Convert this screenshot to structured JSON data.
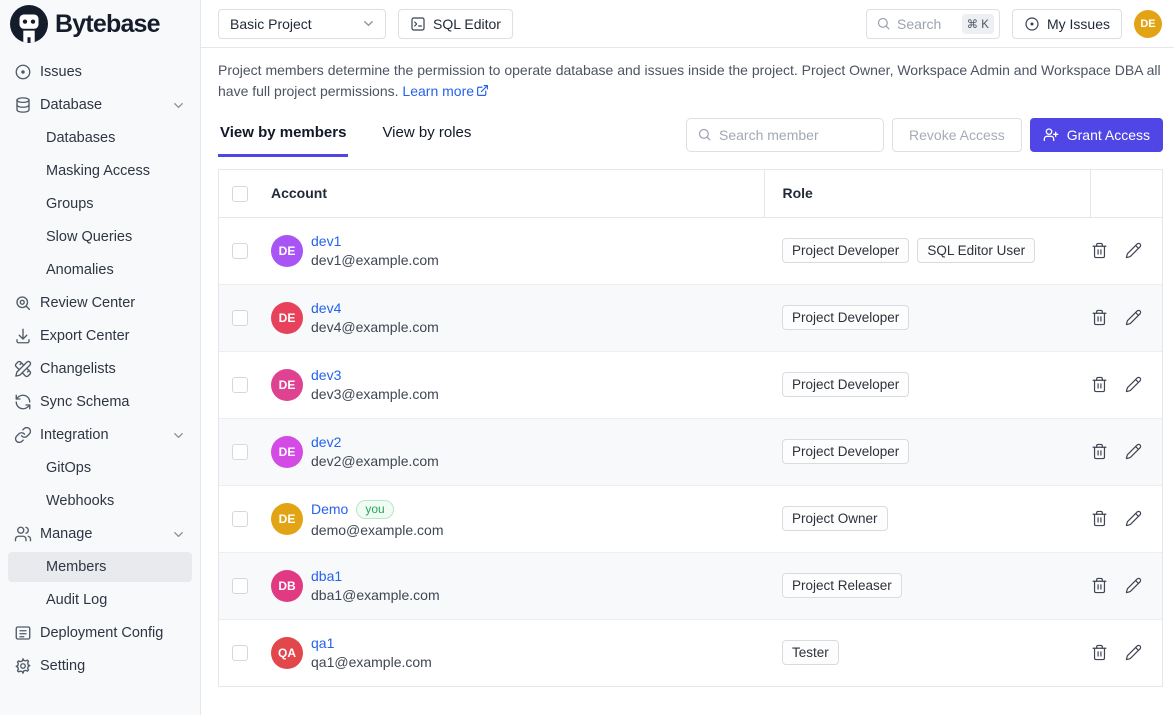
{
  "brand": {
    "name": "Bytebase"
  },
  "topbar": {
    "project_select_value": "Basic Project",
    "sql_editor_label": "SQL Editor",
    "search_placeholder": "Search",
    "search_shortcut": "⌘ K",
    "my_issues_label": "My Issues",
    "user_avatar_initials": "DE"
  },
  "sidebar": {
    "items": [
      {
        "label": "Issues",
        "icon": "issues"
      },
      {
        "label": "Database",
        "icon": "database",
        "expandable": true
      },
      {
        "label": "Databases",
        "sub": true
      },
      {
        "label": "Masking Access",
        "sub": true
      },
      {
        "label": "Groups",
        "sub": true
      },
      {
        "label": "Slow Queries",
        "sub": true
      },
      {
        "label": "Anomalies",
        "sub": true
      },
      {
        "label": "Review Center",
        "icon": "review-center"
      },
      {
        "label": "Export Center",
        "icon": "export-center"
      },
      {
        "label": "Changelists",
        "icon": "changelists"
      },
      {
        "label": "Sync Schema",
        "icon": "sync-schema"
      },
      {
        "label": "Integration",
        "icon": "integration",
        "expandable": true
      },
      {
        "label": "GitOps",
        "sub": true
      },
      {
        "label": "Webhooks",
        "sub": true
      },
      {
        "label": "Manage",
        "icon": "manage",
        "expandable": true
      },
      {
        "label": "Members",
        "sub": true,
        "active": true
      },
      {
        "label": "Audit Log",
        "sub": true
      },
      {
        "label": "Deployment Config",
        "icon": "deployment-config"
      },
      {
        "label": "Setting",
        "icon": "setting"
      }
    ]
  },
  "main": {
    "description": "Project members determine the permission to operate database and issues inside the project. Project Owner, Workspace Admin and Workspace DBA all have full project permissions.",
    "learn_more_label": "Learn more",
    "tabs": [
      {
        "label": "View by members",
        "active": true
      },
      {
        "label": "View by roles",
        "active": false
      }
    ],
    "member_search_placeholder": "Search member",
    "revoke_access_label": "Revoke Access",
    "grant_access_label": "Grant Access",
    "table": {
      "columns": [
        "Account",
        "Role"
      ],
      "rows": [
        {
          "name": "dev1",
          "email": "dev1@example.com",
          "initials": "DE",
          "avatar_color": "#a955f6",
          "roles": [
            "Project Developer",
            "SQL Editor User"
          ]
        },
        {
          "name": "dev4",
          "email": "dev4@example.com",
          "initials": "DE",
          "avatar_color": "#e8415c",
          "roles": [
            "Project Developer"
          ]
        },
        {
          "name": "dev3",
          "email": "dev3@example.com",
          "initials": "DE",
          "avatar_color": "#de4291",
          "roles": [
            "Project Developer"
          ]
        },
        {
          "name": "dev2",
          "email": "dev2@example.com",
          "initials": "DE",
          "avatar_color": "#d44ae5",
          "roles": [
            "Project Developer"
          ]
        },
        {
          "name": "Demo",
          "you_badge": "you",
          "email": "demo@example.com",
          "initials": "DE",
          "avatar_color": "#e2a414",
          "roles": [
            "Project Owner"
          ]
        },
        {
          "name": "dba1",
          "email": "dba1@example.com",
          "initials": "DB",
          "avatar_color": "#e13a83",
          "roles": [
            "Project Releaser"
          ]
        },
        {
          "name": "qa1",
          "email": "qa1@example.com",
          "initials": "QA",
          "avatar_color": "#e2484b",
          "roles": [
            "Tester"
          ]
        }
      ]
    }
  },
  "colors": {
    "accent": "#4f46e5",
    "link": "#2563eb"
  }
}
